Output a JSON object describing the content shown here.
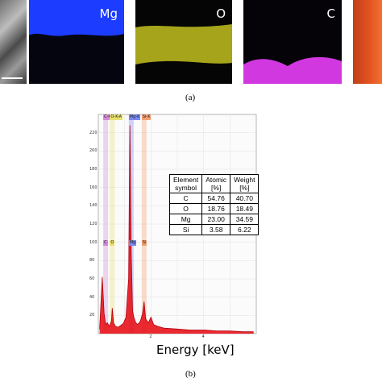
{
  "panel_a": {
    "caption": "(a)",
    "maps": [
      {
        "label": "",
        "kind": "sem"
      },
      {
        "label": "Mg",
        "color": "#1c3cff"
      },
      {
        "label": "O",
        "color": "#b6b41a"
      },
      {
        "label": "C",
        "color": "#d238e0"
      },
      {
        "label": "",
        "color": "#e05020"
      }
    ]
  },
  "panel_b": {
    "caption": "(b)",
    "peak_tags": [
      {
        "label": "C-K-A",
        "color": "#d28ad8"
      },
      {
        "label": "O-K-A",
        "color": "#e8e070"
      },
      {
        "label": "Mg-K",
        "color": "#7a88f0"
      },
      {
        "label": "Si-K",
        "color": "#f0a070"
      }
    ],
    "peak_tags_lower": [
      {
        "label": "C",
        "color": "#d28ad8"
      },
      {
        "label": "O",
        "color": "#e8e070"
      },
      {
        "label": "Mg",
        "color": "#7a88f0"
      },
      {
        "label": "Si",
        "color": "#f0a070"
      }
    ],
    "table": {
      "headers": [
        [
          "Element",
          "symbol"
        ],
        [
          "Atomic",
          "[%]"
        ],
        [
          "Weight",
          "[%]"
        ]
      ],
      "rows": [
        [
          "C",
          "54.76",
          "40.70"
        ],
        [
          "O",
          "18.76",
          "18.49"
        ],
        [
          "Mg",
          "23.00",
          "34.59"
        ],
        [
          "Si",
          "3.58",
          "6.22"
        ]
      ]
    }
  },
  "chart_data": {
    "type": "line",
    "title": "",
    "xlabel": "Energy [keV]",
    "ylabel": "",
    "xlim": [
      0,
      6
    ],
    "ylim": [
      0,
      240
    ],
    "x_ticks": [
      "2",
      "4"
    ],
    "y_ticks": [
      "20",
      "40",
      "60",
      "80",
      "100",
      "120",
      "140",
      "160",
      "180",
      "200",
      "220"
    ],
    "series": [
      {
        "name": "",
        "color": "#e8131b",
        "x": [
          0.05,
          0.15,
          0.22,
          0.28,
          0.34,
          0.42,
          0.5,
          0.53,
          0.58,
          0.65,
          0.75,
          0.85,
          0.95,
          1.05,
          1.15,
          1.2,
          1.25,
          1.3,
          1.35,
          1.42,
          1.5,
          1.6,
          1.68,
          1.74,
          1.8,
          1.9,
          2.0,
          2.1,
          2.25,
          2.5,
          3.0,
          3.5,
          4.0,
          4.5,
          5.0,
          5.5,
          5.9
        ],
        "y": [
          5,
          62,
          22,
          10,
          12,
          8,
          14,
          28,
          12,
          8,
          7,
          9,
          11,
          18,
          60,
          228,
          90,
          25,
          18,
          12,
          10,
          14,
          22,
          35,
          16,
          12,
          18,
          10,
          8,
          6,
          5,
          4,
          4,
          3,
          3,
          2,
          2
        ]
      }
    ],
    "peaks": [
      {
        "element": "C",
        "energy": 0.28
      },
      {
        "element": "O",
        "energy": 0.53
      },
      {
        "element": "Mg",
        "energy": 1.25
      },
      {
        "element": "Si",
        "energy": 1.74
      }
    ],
    "grid": true,
    "legend": "none"
  }
}
